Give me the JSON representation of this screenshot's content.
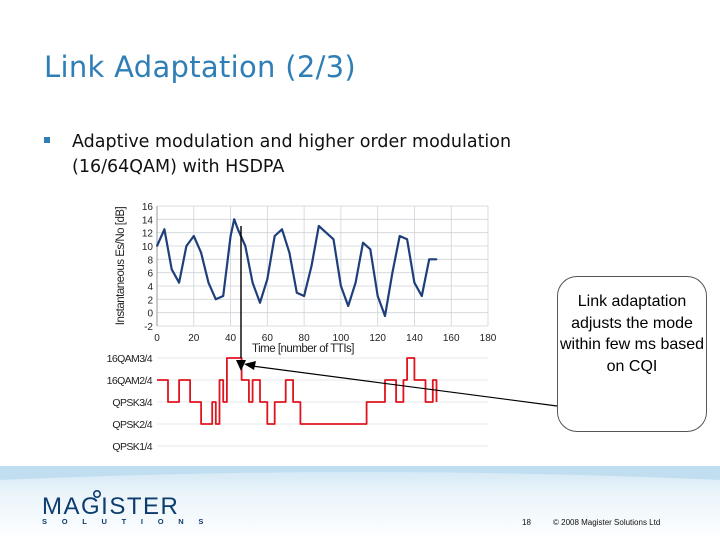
{
  "slide": {
    "title": "Link Adaptation (2/3)",
    "bullet": "Adaptive modulation and higher order modulation (16/64QAM) with HSDPA",
    "callout": "Link adaptation adjusts the mode within few ms based on CQI",
    "page_number": "18",
    "copyright": "© 2008 Magister Solutions Ltd",
    "logo_word": "MAGISTER",
    "logo_sub": "SOLUTIONS",
    "accent_color": "#2f7fb6",
    "logo_color": "#0d3c6e"
  },
  "chart_data": [
    {
      "type": "line",
      "ylabel": "Instantaneous Es/No [dB]",
      "xlabel": "Time [number of TTIs]",
      "x_ticks": [
        "0",
        "20",
        "40",
        "60",
        "80",
        "100",
        "120",
        "140",
        "160",
        "180"
      ],
      "y_ticks": [
        "16",
        "14",
        "12",
        "10",
        "8",
        "6",
        "4",
        "2",
        "0",
        "-2"
      ],
      "xlim": [
        0,
        180
      ],
      "ylim": [
        -2,
        16
      ],
      "grid": true,
      "line_color": "#1f3f7a",
      "series": [
        {
          "x": [
            0,
            4,
            8,
            12,
            16,
            20,
            24,
            28,
            32,
            36,
            40,
            42,
            44,
            48,
            52,
            56,
            60,
            64,
            68,
            72,
            76,
            80,
            84,
            88,
            92,
            96,
            100,
            104,
            108,
            112,
            116,
            120,
            124,
            128,
            132,
            136,
            140,
            144,
            148,
            152
          ],
          "values": [
            10,
            12.5,
            6.5,
            4.5,
            10,
            11.5,
            9,
            4.5,
            2,
            2.5,
            11.5,
            14,
            12.5,
            10,
            4.5,
            1.5,
            5,
            11.5,
            12.5,
            9,
            3,
            2.5,
            7,
            13,
            12,
            11,
            4,
            1,
            4.5,
            10.5,
            9.5,
            2.5,
            -0.5,
            6,
            11.5,
            11,
            4.5,
            2.5,
            8,
            8
          ]
        }
      ]
    },
    {
      "type": "line",
      "xlabel": "",
      "ylabel": "",
      "categories": [
        "16QAM3/4",
        "16QAM2/4",
        "QPSK3/4",
        "QPSK2/4",
        "QPSK1/4"
      ],
      "line_color": "#e0141e",
      "series": [
        {
          "x": [
            0,
            4,
            6,
            10,
            12,
            14,
            18,
            20,
            24,
            26,
            28,
            30,
            32,
            34,
            36,
            38,
            40,
            42,
            44,
            46,
            48,
            50,
            52,
            54,
            56,
            58,
            60,
            62,
            64,
            66,
            68,
            70,
            72,
            74,
            76,
            78,
            80,
            82,
            84,
            86,
            88,
            90,
            92,
            94,
            96,
            98,
            100,
            102,
            104,
            106,
            108,
            110,
            112,
            114,
            116,
            118,
            120,
            122,
            124,
            126,
            128,
            130,
            132,
            134,
            136,
            138,
            140,
            142,
            144,
            146,
            148,
            150,
            152
          ],
          "values": [
            3,
            3,
            2,
            2,
            3,
            3,
            2,
            2,
            1,
            1,
            1,
            2,
            1,
            3,
            2,
            4,
            4,
            4,
            4,
            3,
            3,
            2,
            3,
            3,
            2,
            2,
            1,
            1,
            2,
            2,
            2,
            3,
            3,
            2,
            2,
            1,
            1,
            1,
            1,
            1,
            1,
            1,
            1,
            1,
            1,
            1,
            1,
            1,
            1,
            1,
            1,
            1,
            1,
            2,
            2,
            2,
            2,
            2,
            3,
            3,
            3,
            2,
            2,
            3,
            4,
            4,
            3,
            3,
            3,
            2,
            2,
            3,
            2
          ]
        }
      ]
    }
  ]
}
